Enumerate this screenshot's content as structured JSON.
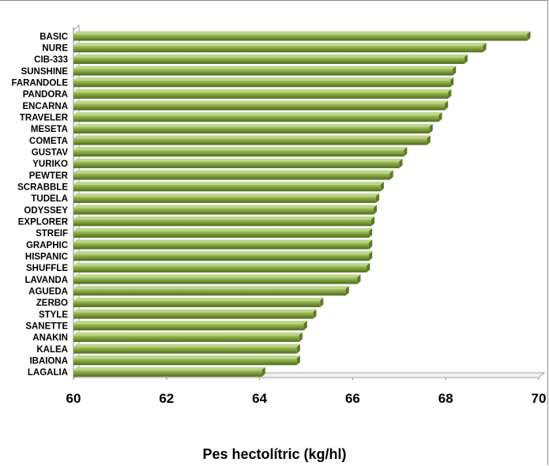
{
  "chart_data": {
    "type": "bar",
    "orientation": "horizontal",
    "style": "3d",
    "bar_color": "#7f9f3c",
    "categories": [
      "BASIC",
      "NURE",
      "CIB-333",
      "SUNSHINE",
      "FARANDOLE",
      "PANDORA",
      "ENCARNA",
      "TRAVELER",
      "MESETA",
      "COMETA",
      "GUSTAV",
      "YURIKO",
      "PEWTER",
      "SCRABBLE",
      "TUDELA",
      "ODYSSEY",
      "EXPLORER",
      "STREIF",
      "GRAPHIC",
      "HISPANIC",
      "SHUFFLE",
      "LAVANDA",
      "AGUEDA",
      "ZERBO",
      "STYLE",
      "SANETTE",
      "ANAKIN",
      "KALEA",
      "IBAIONA",
      "LAGALIA"
    ],
    "values": [
      69.75,
      68.8,
      68.4,
      68.15,
      68.1,
      68.05,
      67.98,
      67.85,
      67.65,
      67.6,
      67.1,
      67.0,
      66.8,
      66.6,
      66.5,
      66.45,
      66.4,
      66.35,
      66.35,
      66.35,
      66.3,
      66.1,
      65.85,
      65.3,
      65.15,
      64.95,
      64.85,
      64.8,
      64.8,
      64.05
    ],
    "xlabel": "Pes hectolítric (kg/hl)",
    "ylabel": "",
    "title": "",
    "xlim": [
      60,
      70
    ],
    "xticks": [
      60,
      62,
      64,
      66,
      68,
      70
    ],
    "grid": false,
    "legend": "none"
  }
}
